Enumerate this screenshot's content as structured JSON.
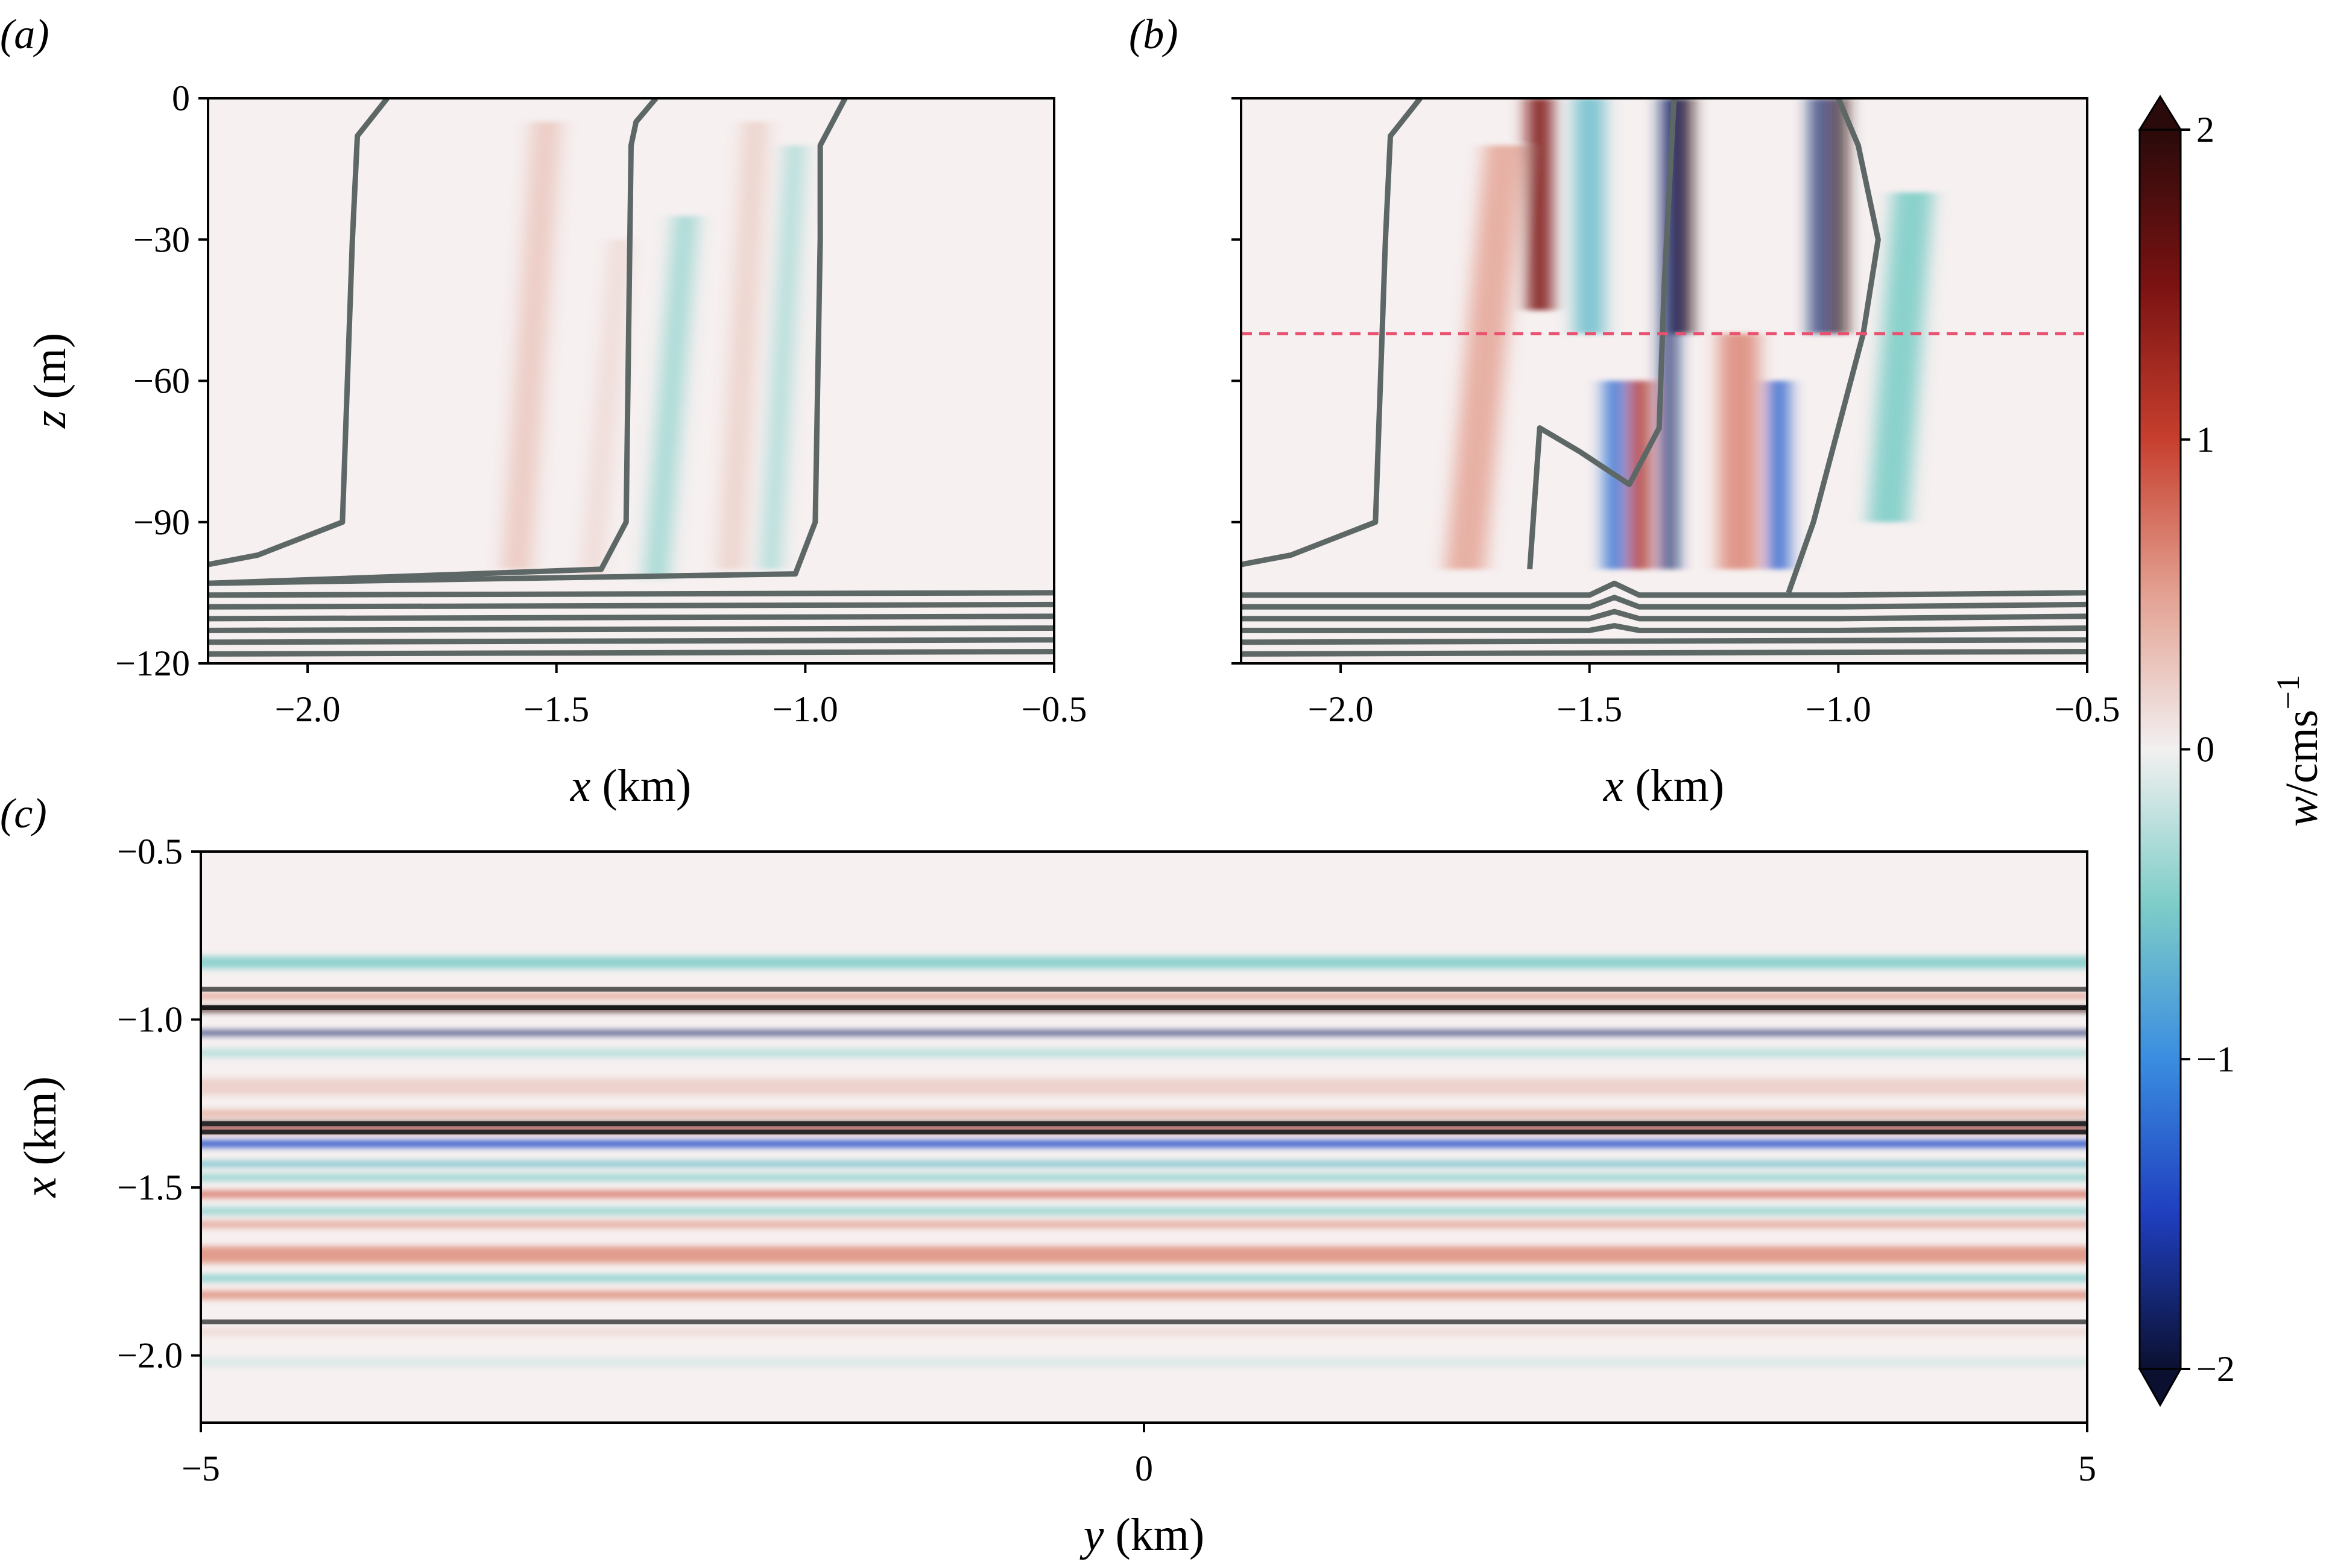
{
  "figure": {
    "panel_a_label": "(a)",
    "panel_b_label": "(b)",
    "panel_c_label": "(c)"
  },
  "chart_data": [
    {
      "panel": "a",
      "type": "heatmap",
      "xlabel_var": "x",
      "xlabel_unit": " (km)",
      "ylabel_var": "z",
      "ylabel_unit": " (m)",
      "xlim": [
        -2.2,
        -0.5
      ],
      "ylim": [
        -120,
        0
      ],
      "xticks": [
        -2.0,
        -1.5,
        -1.0,
        -0.5
      ],
      "xtick_labels": [
        "−2.0",
        "−1.5",
        "−1.0",
        "−0.5"
      ],
      "yticks": [
        0,
        -30,
        -60,
        -90,
        -120
      ],
      "ytick_labels": [
        "0",
        "−30",
        "−60",
        "−90",
        "−120"
      ],
      "bands": [
        {
          "x": -1.58,
          "w": 0.03,
          "amp": 0.25,
          "z_top": -5,
          "z_bot": -100,
          "tilt": 0.06
        },
        {
          "x": -1.43,
          "w": 0.02,
          "amp": 0.15,
          "z_top": -30,
          "z_bot": -102,
          "tilt": 0.06
        },
        {
          "x": -1.3,
          "w": 0.025,
          "amp": -0.35,
          "z_top": -25,
          "z_bot": -102,
          "tilt": 0.06
        },
        {
          "x": -1.15,
          "w": 0.025,
          "amp": 0.2,
          "z_top": -5,
          "z_bot": -100,
          "tilt": 0.05
        },
        {
          "x": -1.07,
          "w": 0.02,
          "amp": -0.3,
          "z_top": -10,
          "z_bot": -100,
          "tilt": 0.05
        }
      ],
      "contours": [
        {
          "x": [
            -1.84,
            -1.9,
            -1.91,
            -1.93,
            -2.1,
            -2.2
          ],
          "z": [
            0,
            -8,
            -30,
            -90,
            -97,
            -99
          ]
        },
        {
          "x": [
            -1.3,
            -1.34,
            -1.35,
            -1.36,
            -1.41,
            -2.2
          ],
          "z": [
            0,
            -5,
            -10,
            -90,
            -100,
            -103
          ]
        },
        {
          "x": [
            -0.92,
            -0.97,
            -0.97,
            -0.98,
            -1.02,
            -2.2
          ],
          "z": [
            0,
            -10,
            -30,
            -90,
            -101,
            -103
          ]
        },
        {
          "x": [
            -2.2,
            -0.5
          ],
          "z": [
            -105.5,
            -105
          ]
        },
        {
          "x": [
            -2.2,
            -0.5
          ],
          "z": [
            -108,
            -107.5
          ]
        },
        {
          "x": [
            -2.2,
            -0.5
          ],
          "z": [
            -110.5,
            -110
          ]
        },
        {
          "x": [
            -2.2,
            -0.5
          ],
          "z": [
            -113,
            -112.5
          ]
        },
        {
          "x": [
            -2.2,
            -0.5
          ],
          "z": [
            -115.5,
            -115
          ]
        },
        {
          "x": [
            -2.2,
            -0.5
          ],
          "z": [
            -118,
            -117.5
          ]
        }
      ]
    },
    {
      "panel": "b",
      "type": "heatmap",
      "xlabel_var": "x",
      "xlabel_unit": " (km)",
      "xlim": [
        -2.2,
        -0.5
      ],
      "ylim": [
        -120,
        0
      ],
      "xticks": [
        -2.0,
        -1.5,
        -1.0,
        -0.5
      ],
      "xtick_labels": [
        "−2.0",
        "−1.5",
        "−1.0",
        "−0.5"
      ],
      "yticks": [
        0,
        -30,
        -60,
        -90,
        -120
      ],
      "annotation": {
        "type": "dashed-line",
        "z": -50,
        "color": "#e8516f"
      },
      "bands": [
        {
          "x": -1.75,
          "w": 0.04,
          "amp": 0.45,
          "z_top": -10,
          "z_bot": -100,
          "tilt": 0.08
        },
        {
          "x": -1.6,
          "w": 0.025,
          "amp": 1.5,
          "z_top": 0,
          "z_bot": -45,
          "tilt": 0.0
        },
        {
          "x": -1.5,
          "w": 0.03,
          "amp": -0.6,
          "z_top": 0,
          "z_bot": -50,
          "tilt": 0.0
        },
        {
          "x": -1.45,
          "w": 0.02,
          "amp": -1.2,
          "z_top": -60,
          "z_bot": -100,
          "tilt": 0.0
        },
        {
          "x": -1.4,
          "w": 0.02,
          "amp": 1.2,
          "z_top": -60,
          "z_bot": -100,
          "tilt": 0.0
        },
        {
          "x": -1.34,
          "w": 0.015,
          "amp": -1.8,
          "z_top": 0,
          "z_bot": -100,
          "tilt": 0.0
        },
        {
          "x": -1.31,
          "w": 0.015,
          "amp": 2.0,
          "z_top": 0,
          "z_bot": -50,
          "tilt": 0.0
        },
        {
          "x": -1.2,
          "w": 0.04,
          "amp": 0.6,
          "z_top": -50,
          "z_bot": -100,
          "tilt": 0.0
        },
        {
          "x": -1.12,
          "w": 0.02,
          "amp": -1.3,
          "z_top": -60,
          "z_bot": -100,
          "tilt": 0.0
        },
        {
          "x": -1.04,
          "w": 0.015,
          "amp": -1.8,
          "z_top": 0,
          "z_bot": -50,
          "tilt": 0.0
        },
        {
          "x": -1.0,
          "w": 0.015,
          "amp": 2.0,
          "z_top": 0,
          "z_bot": -50,
          "tilt": 0.0
        },
        {
          "x": -0.9,
          "w": 0.04,
          "amp": -0.5,
          "z_top": -20,
          "z_bot": -90,
          "tilt": 0.05
        }
      ],
      "contours": [
        {
          "x": [
            -1.84,
            -1.9,
            -1.91,
            -1.93,
            -2.1,
            -2.2
          ],
          "z": [
            0,
            -8,
            -30,
            -90,
            -97,
            -99
          ]
        },
        {
          "x": [
            -1.33,
            -1.34,
            -1.35,
            -1.36,
            -1.42,
            -1.52,
            -1.6,
            -1.62
          ],
          "z": [
            0,
            -20,
            -40,
            -70,
            -82,
            -75,
            -70,
            -100
          ]
        },
        {
          "x": [
            -1.0,
            -0.96,
            -0.92,
            -0.95,
            -1.0,
            -1.05,
            -1.1
          ],
          "z": [
            0,
            -10,
            -30,
            -50,
            -70,
            -90,
            -105
          ]
        },
        {
          "x": [
            -2.2,
            -1.5,
            -1.45,
            -1.4,
            -1.0,
            -0.5
          ],
          "z": [
            -105.5,
            -105.5,
            -103,
            -105.5,
            -105.5,
            -105
          ]
        },
        {
          "x": [
            -2.2,
            -1.5,
            -1.45,
            -1.4,
            -1.0,
            -0.5
          ],
          "z": [
            -108,
            -108,
            -106,
            -108,
            -108,
            -107.5
          ]
        },
        {
          "x": [
            -2.2,
            -1.5,
            -1.45,
            -1.4,
            -1.0,
            -0.5
          ],
          "z": [
            -110.5,
            -110.5,
            -109,
            -110.5,
            -110.5,
            -110
          ]
        },
        {
          "x": [
            -2.2,
            -1.5,
            -1.45,
            -1.4,
            -1.0,
            -0.5
          ],
          "z": [
            -113,
            -113,
            -112,
            -113,
            -113,
            -112.5
          ]
        },
        {
          "x": [
            -2.2,
            -0.5
          ],
          "z": [
            -115.5,
            -115
          ]
        },
        {
          "x": [
            -2.2,
            -0.5
          ],
          "z": [
            -118,
            -117.5
          ]
        }
      ]
    },
    {
      "panel": "c",
      "type": "heatmap",
      "xlabel_var": "y",
      "xlabel_unit": " (km)",
      "ylabel_var": "x",
      "ylabel_unit": " (km)",
      "xlim": [
        -5,
        5
      ],
      "ylim": [
        -2.2,
        -0.5
      ],
      "xticks": [
        -5,
        0,
        5
      ],
      "xtick_labels": [
        "−5",
        "0",
        "5"
      ],
      "yticks": [
        -0.5,
        -1.0,
        -1.5,
        -2.0
      ],
      "ytick_labels": [
        "−0.5",
        "−1.0",
        "−1.5",
        "−2.0"
      ],
      "stripes": [
        {
          "x": -0.83,
          "w": 0.018,
          "amp": -0.45
        },
        {
          "x": -0.93,
          "w": 0.008,
          "amp": 0.5
        },
        {
          "x": -0.97,
          "w": 0.006,
          "amp": 2.0
        },
        {
          "x": -1.04,
          "w": 0.006,
          "amp": -1.8
        },
        {
          "x": -1.1,
          "w": 0.012,
          "amp": -0.25
        },
        {
          "x": -1.2,
          "w": 0.025,
          "amp": 0.2
        },
        {
          "x": -1.28,
          "w": 0.01,
          "amp": 0.4
        },
        {
          "x": -1.31,
          "w": 0.006,
          "amp": 2.0
        },
        {
          "x": -1.33,
          "w": 0.006,
          "amp": 1.2
        },
        {
          "x": -1.37,
          "w": 0.01,
          "amp": -1.4
        },
        {
          "x": -1.43,
          "w": 0.008,
          "amp": -0.6
        },
        {
          "x": -1.47,
          "w": 0.01,
          "amp": -0.4
        },
        {
          "x": -1.52,
          "w": 0.01,
          "amp": 0.7
        },
        {
          "x": -1.57,
          "w": 0.012,
          "amp": -0.35
        },
        {
          "x": -1.61,
          "w": 0.01,
          "amp": 0.45
        },
        {
          "x": -1.7,
          "w": 0.025,
          "amp": 0.55
        },
        {
          "x": -1.77,
          "w": 0.01,
          "amp": -0.45
        },
        {
          "x": -1.82,
          "w": 0.012,
          "amp": 0.55
        },
        {
          "x": -1.93,
          "w": 0.01,
          "amp": 0.15
        },
        {
          "x": -2.02,
          "w": 0.012,
          "amp": -0.12
        }
      ],
      "lines": [
        {
          "x": -0.91,
          "color": "#5a5a5a"
        },
        {
          "x": -0.965,
          "color": "#1a1a1a"
        },
        {
          "x": -1.31,
          "color": "#2a2a2a"
        },
        {
          "x": -1.335,
          "color": "#2a2a2a"
        },
        {
          "x": -1.9,
          "color": "#5a5a5a"
        }
      ]
    }
  ],
  "colorbar": {
    "label_var": "w",
    "label_unit": "/cms",
    "label_exp": "−1",
    "range": [
      -2,
      2
    ],
    "ticks": [
      2,
      1,
      0,
      -1,
      -2
    ],
    "tick_labels": [
      "2",
      "1",
      "0",
      "−1",
      "−2"
    ],
    "colors": [
      "#0b1030",
      "#1f3fbf",
      "#3a8de0",
      "#7ecdc8",
      "#f2f0f0",
      "#e3a192",
      "#c73f2e",
      "#7a1212",
      "#2a0a0a"
    ]
  }
}
